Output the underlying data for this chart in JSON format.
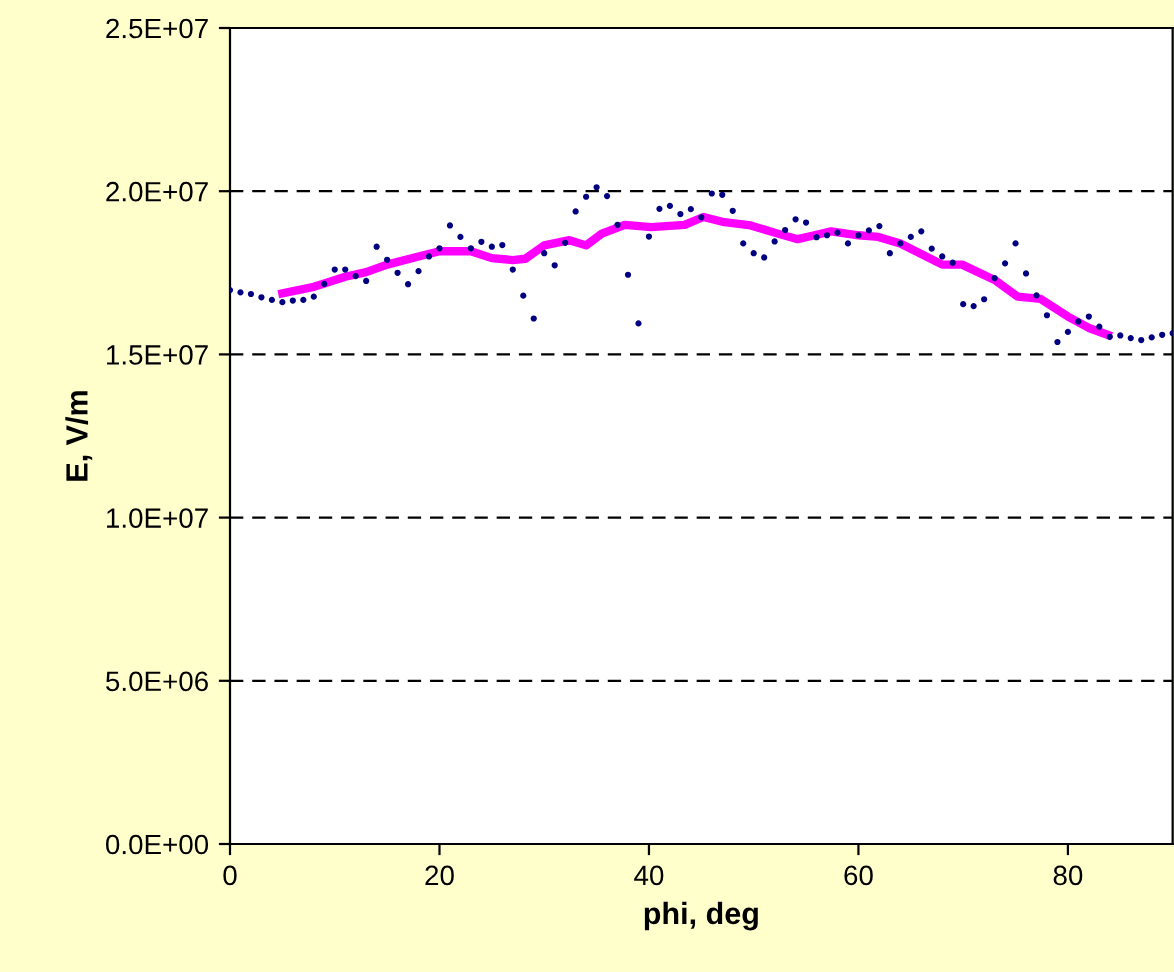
{
  "chart_data": {
    "type": "scatter",
    "xlabel": "phi, deg",
    "ylabel": "E, V/m",
    "xlim": [
      0,
      90
    ],
    "xticks": [
      0,
      20,
      40,
      60,
      80
    ],
    "ylim": [
      0,
      25000000
    ],
    "yticks": [
      {
        "value": 0,
        "label": "0.0E+00"
      },
      {
        "value": 5000000,
        "label": "5.0E+06"
      },
      {
        "value": 10000000,
        "label": "1.0E+07"
      },
      {
        "value": 15000000,
        "label": "1.5E+07"
      },
      {
        "value": 20000000,
        "label": "2.0E+07"
      },
      {
        "value": 25000000,
        "label": "2.5E+07"
      }
    ],
    "grid": "y",
    "legend": false,
    "series": [
      {
        "color": "#000080",
        "marker": "circle",
        "x": [
          0,
          1,
          2,
          3,
          4,
          5,
          6,
          7,
          8,
          9,
          10,
          11,
          12,
          13,
          14,
          15,
          16,
          17,
          18,
          19,
          20,
          21,
          22,
          23,
          24,
          25,
          26,
          27,
          28,
          29,
          30,
          31,
          32,
          33,
          34,
          35,
          36,
          37,
          38,
          39,
          40,
          41,
          42,
          43,
          44,
          45,
          46,
          47,
          48,
          49,
          50,
          51,
          52,
          53,
          54,
          55,
          56,
          57,
          58,
          59,
          60,
          61,
          62,
          63,
          64,
          65,
          66,
          67,
          68,
          69,
          70,
          71,
          72,
          73,
          74,
          75,
          76,
          77,
          78,
          79,
          80,
          81,
          82,
          83,
          84,
          85,
          86,
          87,
          88,
          89,
          90
        ],
        "values": [
          16970000,
          16900000,
          16850000,
          16750000,
          16670000,
          16600000,
          16650000,
          16670000,
          16770000,
          17160000,
          17600000,
          17600000,
          17400000,
          17250000,
          18300000,
          17900000,
          17500000,
          17150000,
          17550000,
          18000000,
          18250000,
          18950000,
          18600000,
          18250000,
          18450000,
          18300000,
          18350000,
          17600000,
          16800000,
          16100000,
          18100000,
          17730000,
          18420000,
          19380000,
          19830000,
          20120000,
          19850000,
          18970000,
          17440000,
          15950000,
          18610000,
          19460000,
          19550000,
          19300000,
          19450000,
          19200000,
          19930000,
          19890000,
          19400000,
          18400000,
          18100000,
          17970000,
          18460000,
          18810000,
          19140000,
          19040000,
          18590000,
          18650000,
          18730000,
          18400000,
          18650000,
          18800000,
          18930000,
          18100000,
          18400000,
          18600000,
          18770000,
          18240000,
          18000000,
          17810000,
          16540000,
          16480000,
          16690000,
          17340000,
          17790000,
          18400000,
          17480000,
          16810000,
          16200000,
          15380000,
          15690000,
          16010000,
          16160000,
          15850000,
          15540000,
          15580000,
          15500000,
          15440000,
          15520000,
          15600000,
          15650000
        ]
      },
      {
        "type": "line",
        "color": "#ff00ff",
        "marker": "none",
        "line_style": "solid",
        "x": [
          5,
          8,
          9,
          11,
          13,
          15,
          18,
          20,
          23,
          25,
          27,
          28.2,
          30,
          32.4,
          34,
          35.5,
          37.7,
          40.2,
          43.4,
          45.2,
          47.2,
          49.7,
          52.3,
          54.2,
          55.8,
          57.4,
          60,
          61.9,
          64,
          68,
          69.9,
          73,
          75.2,
          77.4,
          80,
          82,
          83.8
        ],
        "values": [
          16870000,
          17070000,
          17170000,
          17380000,
          17520000,
          17750000,
          18000000,
          18160000,
          18160000,
          17950000,
          17890000,
          17930000,
          18340000,
          18500000,
          18340000,
          18700000,
          18970000,
          18900000,
          18970000,
          19210000,
          19050000,
          18950000,
          18700000,
          18530000,
          18650000,
          18770000,
          18650000,
          18600000,
          18400000,
          17750000,
          17750000,
          17280000,
          16770000,
          16700000,
          16160000,
          15810000,
          15600000
        ]
      }
    ]
  }
}
